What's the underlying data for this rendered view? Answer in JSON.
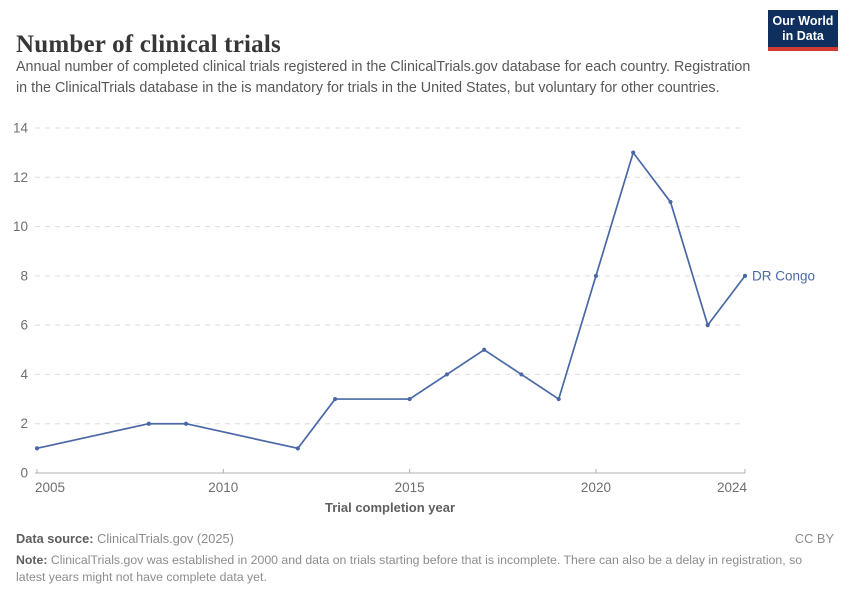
{
  "header": {
    "title": "Number of clinical trials",
    "subtitle": "Annual number of completed clinical trials registered in the ClinicalTrials.gov database for each country. Registration in the ClinicalTrials database in the is mandatory for trials in the United States, but voluntary for other countries.",
    "logo": {
      "line1": "Our World",
      "line2": "in Data"
    }
  },
  "chart_data": {
    "type": "line",
    "title": "Number of clinical trials",
    "xlabel": "Trial completion year",
    "ylabel": "",
    "series": [
      {
        "name": "DR Congo",
        "color": "#4a68a6",
        "points": [
          [
            2005,
            1
          ],
          [
            2008,
            2
          ],
          [
            2009,
            2
          ],
          [
            2012,
            1
          ],
          [
            2013,
            3
          ],
          [
            2015,
            3
          ],
          [
            2016,
            4
          ],
          [
            2017,
            5
          ],
          [
            2018,
            4
          ],
          [
            2019,
            3
          ],
          [
            2020,
            8
          ],
          [
            2021,
            13
          ],
          [
            2022,
            11
          ],
          [
            2023,
            6
          ],
          [
            2024,
            8
          ]
        ]
      }
    ],
    "xlim": [
      2005,
      2024
    ],
    "ylim": [
      0,
      14
    ],
    "yticks": [
      0,
      2,
      4,
      6,
      8,
      10,
      12,
      14
    ],
    "xticks": [
      2005,
      2010,
      2015,
      2020,
      2024
    ],
    "grid": true,
    "grid_style": "dashed",
    "legend_position": "end-of-line-label",
    "colors": {
      "line": "#4a68a6",
      "grid": "#dddddd",
      "axis": "#b0b0b0",
      "tick_label": "#6f6f6f",
      "axis_title": "#5f5f5f"
    }
  },
  "footer": {
    "data_source_label": "Data source:",
    "data_source": "ClinicalTrials.gov (2025)",
    "license": "CC BY",
    "note_label": "Note:",
    "note": "ClinicalTrials.gov was established in 2000 and data on trials starting before that is incomplete. There can also be a delay in registration, so latest years might not have complete data yet."
  }
}
